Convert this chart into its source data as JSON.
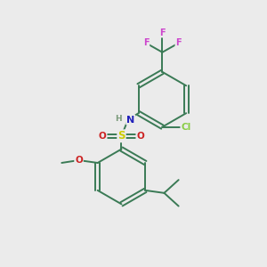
{
  "background_color": "#ebebeb",
  "bond_color": "#3a7a55",
  "atom_colors": {
    "F": "#cc44cc",
    "N": "#2222bb",
    "S": "#cccc00",
    "O": "#cc2222",
    "Cl": "#88cc44",
    "C": "#3a7a55",
    "H": "#7a9a7a"
  },
  "figsize": [
    3.0,
    3.0
  ],
  "dpi": 100
}
